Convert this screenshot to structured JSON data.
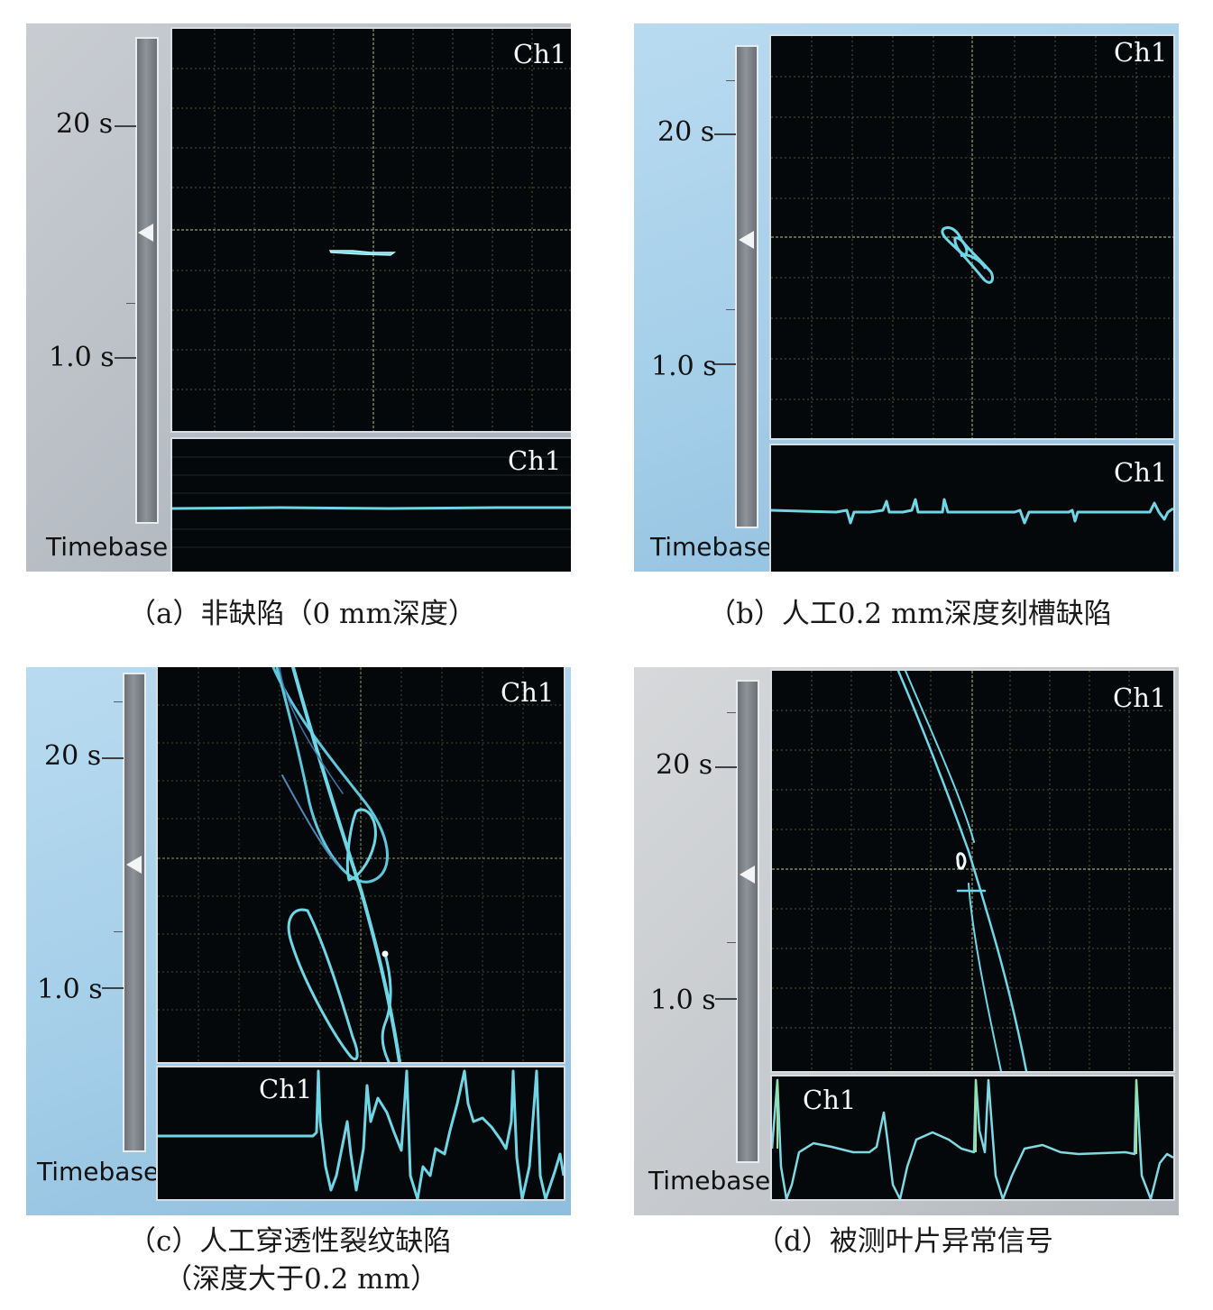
{
  "panels": {
    "a": {
      "scale_upper": "20 s",
      "scale_lower": "1.0 s",
      "timebase": "Timebase",
      "ch_upper": "Ch1",
      "ch_lower": "Ch1",
      "caption": "（a）非缺陷（0 mm深度）"
    },
    "b": {
      "scale_upper": "20 s",
      "scale_lower": "1.0 s",
      "timebase": "Timebase",
      "ch_upper": "Ch1",
      "ch_lower": "Ch1",
      "caption": "（b）人工0.2 mm深度刻槽缺陷"
    },
    "c": {
      "scale_upper": "20 s",
      "scale_lower": "1.0 s",
      "timebase": "Timebase",
      "ch_upper": "Ch1",
      "ch_lower": "Ch1",
      "caption_line1": "（c）人工穿透性裂纹缺陷",
      "caption_line2": "（深度大于0.2 mm）"
    },
    "d": {
      "scale_upper": "20 s",
      "scale_lower": "1.0 s",
      "timebase": "Timebase",
      "ch_upper": "Ch1",
      "ch_lower": "Ch1",
      "caption": "（d）被测叶片异常信号"
    }
  },
  "colors": {
    "trace": "#5fd3e6",
    "trace_green": "#7ee0b0",
    "grid": "#4a5a3a",
    "screen_bg": "#05080b"
  }
}
